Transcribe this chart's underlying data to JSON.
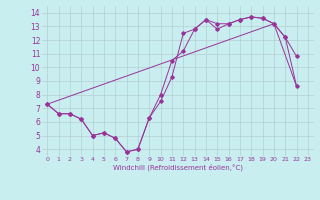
{
  "xlabel": "Windchill (Refroidissement éolien,°C)",
  "background_color": "#c8eef0",
  "line_color": "#993399",
  "grid_color": "#b0c8cc",
  "xlim": [
    -0.5,
    23.5
  ],
  "ylim": [
    3.5,
    14.5
  ],
  "xticks": [
    0,
    1,
    2,
    3,
    4,
    5,
    6,
    7,
    8,
    9,
    10,
    11,
    12,
    13,
    14,
    15,
    16,
    17,
    18,
    19,
    20,
    21,
    22,
    23
  ],
  "yticks": [
    4,
    5,
    6,
    7,
    8,
    9,
    10,
    11,
    12,
    13,
    14
  ],
  "line1_y": [
    7.3,
    6.6,
    6.6,
    6.2,
    5.0,
    5.2,
    4.8,
    3.8,
    4.0,
    6.3,
    7.5,
    9.3,
    12.5,
    12.8,
    13.5,
    12.8,
    13.2,
    13.5,
    13.7,
    13.6,
    13.2,
    12.2,
    10.8,
    null
  ],
  "line2_y": [
    7.3,
    6.6,
    6.6,
    6.2,
    5.0,
    5.2,
    4.8,
    3.8,
    4.0,
    6.3,
    8.0,
    10.5,
    11.2,
    12.8,
    13.5,
    13.2,
    13.2,
    13.5,
    13.7,
    13.6,
    13.2,
    12.2,
    8.6,
    null
  ],
  "line3_y": [
    7.3,
    null,
    null,
    null,
    null,
    null,
    null,
    null,
    null,
    null,
    null,
    null,
    null,
    null,
    null,
    null,
    null,
    null,
    null,
    null,
    13.2,
    null,
    8.6,
    null
  ]
}
